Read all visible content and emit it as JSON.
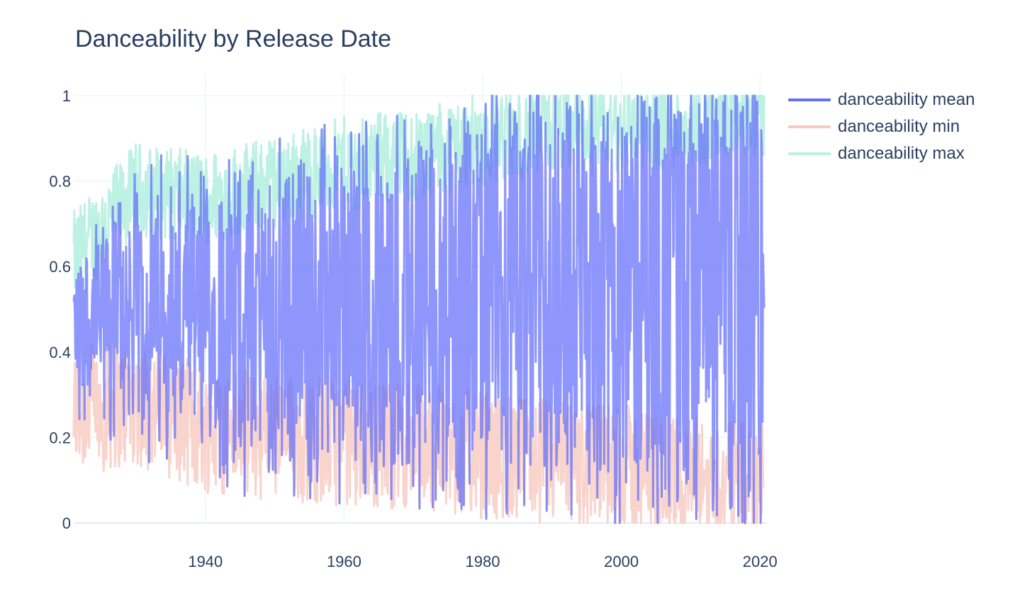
{
  "chart_data": {
    "type": "line",
    "title": "Danceability by Release Date",
    "xlabel": "",
    "ylabel": "",
    "xlim": [
      1921,
      2021
    ],
    "ylim": [
      0,
      1
    ],
    "x_ticks": [
      "1940",
      "1960",
      "1980",
      "2000",
      "2020"
    ],
    "y_ticks": [
      "0",
      "0.2",
      "0.4",
      "0.6",
      "0.8",
      "1"
    ],
    "grid": true,
    "legend_position": "top-right",
    "series": [
      {
        "name": "danceability mean",
        "color": "#636efa",
        "values_note_trend": [
          0.52,
          0.56
        ]
      },
      {
        "name": "danceability min",
        "color": "#f8b4aa"
      },
      {
        "name": "danceability max",
        "color": "#a6ecd9"
      }
    ],
    "trend": {
      "x": [
        1921,
        1930,
        1940,
        1950,
        1960,
        1970,
        1980,
        1990,
        2000,
        2010,
        2020
      ],
      "mean": [
        0.45,
        0.5,
        0.47,
        0.49,
        0.5,
        0.52,
        0.55,
        0.57,
        0.57,
        0.58,
        0.6
      ],
      "min": [
        0.26,
        0.28,
        0.22,
        0.2,
        0.19,
        0.18,
        0.16,
        0.14,
        0.13,
        0.1,
        0.08
      ],
      "max": [
        0.62,
        0.78,
        0.76,
        0.8,
        0.84,
        0.86,
        0.9,
        0.92,
        0.93,
        0.94,
        0.96
      ]
    }
  }
}
